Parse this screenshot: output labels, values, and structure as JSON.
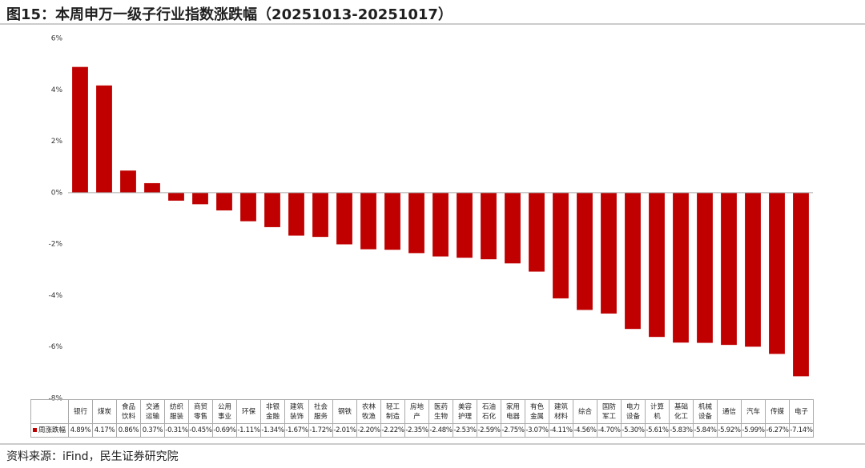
{
  "chart_data": {
    "type": "bar",
    "title": "图15：本周申万一级子行业指数涨跌幅（20251013-20251017）",
    "categories": [
      "银行",
      "煤炭",
      "食品饮料",
      "交通运输",
      "纺织服装",
      "商贸零售",
      "公用事业",
      "环保",
      "非银金融",
      "建筑装饰",
      "社会服务",
      "钢铁",
      "农林牧渔",
      "轻工制造",
      "房地产",
      "医药生物",
      "美容护理",
      "石油石化",
      "家用电器",
      "有色金属",
      "建筑材料",
      "综合",
      "国防军工",
      "电力设备",
      "计算机",
      "基础化工",
      "机械设备",
      "通信",
      "汽车",
      "传媒",
      "电子"
    ],
    "series": [
      {
        "name": "周涨跌幅",
        "color": "#c00000",
        "values": [
          4.89,
          4.17,
          0.86,
          0.37,
          -0.31,
          -0.45,
          -0.69,
          -1.11,
          -1.34,
          -1.67,
          -1.72,
          -2.01,
          -2.2,
          -2.22,
          -2.35,
          -2.48,
          -2.53,
          -2.59,
          -2.75,
          -3.07,
          -4.11,
          -4.56,
          -4.7,
          -5.3,
          -5.61,
          -5.83,
          -5.84,
          -5.92,
          -5.99,
          -6.27,
          -7.14
        ],
        "value_labels": [
          "4.89%",
          "4.17%",
          "0.86%",
          "0.37%",
          "-0.31%",
          "-0.45%",
          "-0.69%",
          "-1.11%",
          "-1.34%",
          "-1.67%",
          "-1.72%",
          "-2.01%",
          "-2.20%",
          "-2.22%",
          "-2.35%",
          "-2.48%",
          "-2.53%",
          "-2.59%",
          "-2.75%",
          "-3.07%",
          "-4.11%",
          "-4.56%",
          "-4.70%",
          "-5.30%",
          "-5.61%",
          "-5.83%",
          "-5.84%",
          "-5.92%",
          "-5.99%",
          "-6.27%",
          "-7.14%"
        ]
      }
    ],
    "ylim": [
      -8,
      6
    ],
    "yticks": [
      {
        "value": -8,
        "label": "-8%"
      },
      {
        "value": -6,
        "label": "-6%"
      },
      {
        "value": -4,
        "label": "-4%"
      },
      {
        "value": -2,
        "label": "-2%"
      },
      {
        "value": 0,
        "label": "0%"
      },
      {
        "value": 2,
        "label": "2%"
      },
      {
        "value": 4,
        "label": "4%"
      },
      {
        "value": 6,
        "label": "6%"
      }
    ],
    "source": "资料来源：iFind，民生证券研究院"
  }
}
